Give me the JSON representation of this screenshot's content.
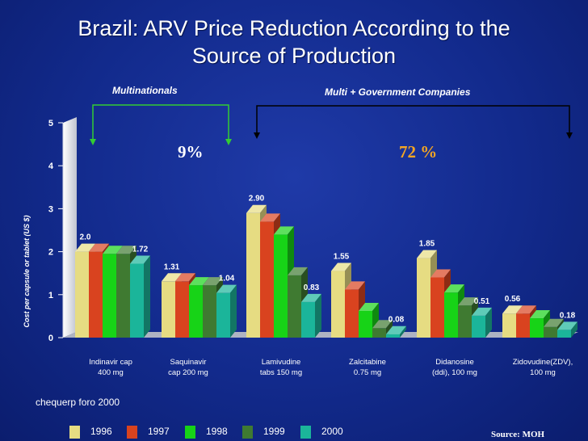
{
  "title_line1": "Brazil: ARV Price Reduction According to the",
  "title_line2": "Source of Production",
  "groups": {
    "multinationals": {
      "label": "Multinationals",
      "pct": "9%"
    },
    "multi_gov": {
      "label": "Multi + Government Companies",
      "pct": "72 %"
    }
  },
  "note": "chequerp foro 2000",
  "source": "Source: MOH",
  "colors": {
    "pct_multinationals": "#ffffff",
    "pct_multi_gov": "#f5a623",
    "bracket_multinationals": "#33cc33",
    "bracket_multi_gov": "#000000"
  },
  "chart_data": {
    "type": "bar",
    "title": "Brazil: ARV Price Reduction According to the Source of Production",
    "ylabel": "Cost per capsule or tablet (US $)",
    "xlabel": "",
    "ylim": [
      0,
      5
    ],
    "yticks": [
      "0",
      "1",
      "2",
      "3",
      "4",
      "5"
    ],
    "grid": false,
    "legend_position": "bottom",
    "categories": [
      [
        "Indinavir cap",
        "400 mg"
      ],
      [
        "Saquinavir",
        "cap 200 mg"
      ],
      [
        "Lamivudine",
        "tabs 150 mg"
      ],
      [
        "Zalcitabine",
        "0.75 mg"
      ],
      [
        "Didanosine",
        "(ddi), 100 mg"
      ],
      [
        "Zidovudine(ZDV),",
        "100 mg"
      ]
    ],
    "series": [
      {
        "name": "1996",
        "color": "#e6dc82",
        "values": [
          2.0,
          1.31,
          2.9,
          1.55,
          1.85,
          0.56
        ]
      },
      {
        "name": "1997",
        "color": "#d9431f",
        "values": [
          2.0,
          1.31,
          2.7,
          1.12,
          1.4,
          0.56
        ]
      },
      {
        "name": "1998",
        "color": "#17d317",
        "values": [
          1.95,
          1.22,
          2.4,
          0.62,
          1.05,
          0.45
        ]
      },
      {
        "name": "1999",
        "color": "#3f7a31",
        "values": [
          1.95,
          1.22,
          1.45,
          0.22,
          0.75,
          0.25
        ]
      },
      {
        "name": "2000",
        "color": "#1bb59a",
        "values": [
          1.72,
          1.04,
          0.83,
          0.08,
          0.51,
          0.18
        ]
      }
    ],
    "data_labels": [
      {
        "category": 0,
        "series": 0,
        "text": "2.0"
      },
      {
        "category": 0,
        "series": 4,
        "text": "1.72"
      },
      {
        "category": 1,
        "series": 0,
        "text": "1.31"
      },
      {
        "category": 1,
        "series": 4,
        "text": "1.04"
      },
      {
        "category": 2,
        "series": 0,
        "text": "2.90"
      },
      {
        "category": 2,
        "series": 4,
        "text": "0.83"
      },
      {
        "category": 3,
        "series": 0,
        "text": "1.55"
      },
      {
        "category": 3,
        "series": 4,
        "text": "0.08"
      },
      {
        "category": 4,
        "series": 0,
        "text": "1.85"
      },
      {
        "category": 4,
        "series": 4,
        "text": "0.51"
      },
      {
        "category": 5,
        "series": 0,
        "text": "0.56"
      },
      {
        "category": 5,
        "series": 4,
        "text": "0.18"
      }
    ]
  }
}
